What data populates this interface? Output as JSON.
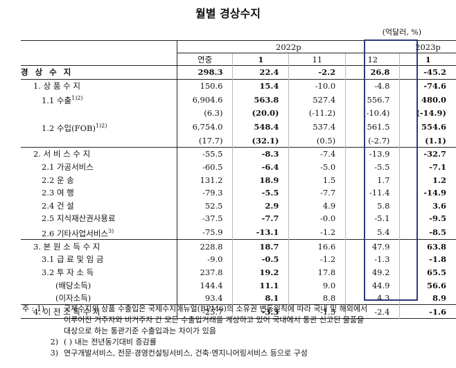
{
  "title": "월별 경상수지",
  "unit": "(억달러, %)",
  "header": {
    "year_2022": "2022p",
    "year_2023": "2023p",
    "cols": [
      "연중",
      "1",
      "11",
      "12",
      "1"
    ]
  },
  "rows": [
    {
      "label": "경 상 수 지",
      "indent": 0,
      "bold": true,
      "vals": [
        "298.3",
        "22.4",
        "-2.2",
        "26.8",
        "-45.2"
      ]
    },
    {
      "label": "1. 상 품 수 지",
      "indent": 1,
      "vals": [
        "150.6",
        "15.4",
        "-10.0",
        "-4.8",
        "-74.6"
      ]
    },
    {
      "label": "1.1 수출",
      "sup": "1)2)",
      "indent": 2,
      "vals": [
        "6,904.6",
        "563.8",
        "527.4",
        "556.7",
        "480.0"
      ]
    },
    {
      "label": "",
      "indent": 2,
      "vals": [
        "(6.3)",
        "(20.0)",
        "(-11.2)",
        "(-10.4)",
        "(-14.9)"
      ]
    },
    {
      "label": "1.2 수입(FOB)",
      "sup": "1)2)",
      "indent": 2,
      "vals": [
        "6,754.0",
        "548.4",
        "537.4",
        "561.5",
        "554.6"
      ]
    },
    {
      "label": "",
      "indent": 2,
      "vals": [
        "(17.7)",
        "(32.1)",
        "(0.5)",
        "(-2.7)",
        "(1.1)"
      ]
    },
    {
      "label": "2. 서 비 스 수 지",
      "indent": 1,
      "vals": [
        "-55.5",
        "-8.3",
        "-7.4",
        "-13.9",
        "-32.7"
      ]
    },
    {
      "label": "2.1 가공서비스",
      "indent": 2,
      "vals": [
        "-60.5",
        "-6.4",
        "-5.0",
        "-5.5",
        "-7.1"
      ]
    },
    {
      "label": "2.2 운       송",
      "indent": 2,
      "vals": [
        "131.2",
        "18.9",
        "1.5",
        "1.7",
        "1.2"
      ]
    },
    {
      "label": "2.3 여       행",
      "indent": 2,
      "vals": [
        "-79.3",
        "-5.5",
        "-7.7",
        "-11.4",
        "-14.9"
      ]
    },
    {
      "label": "2.4 건       설",
      "indent": 2,
      "vals": [
        "52.5",
        "2.9",
        "4.9",
        "5.8",
        "3.6"
      ]
    },
    {
      "label": "2.5 지식재산권사용료",
      "indent": 2,
      "vals": [
        "-37.5",
        "-7.7",
        "-0.0",
        "-5.1",
        "-9.5"
      ]
    },
    {
      "label": "2.6 기타사업서비스",
      "sup": "3)",
      "indent": 2,
      "vals": [
        "-75.9",
        "-13.1",
        "-1.2",
        "5.4",
        "-8.5"
      ]
    },
    {
      "label": "3. 본 원 소 득 수 지",
      "indent": 1,
      "vals": [
        "228.8",
        "18.7",
        "16.6",
        "47.9",
        "63.8"
      ]
    },
    {
      "label": "3.1 급 료 및 임 금",
      "indent": 2,
      "vals": [
        "-9.0",
        "-0.5",
        "-1.2",
        "-1.3",
        "-1.8"
      ]
    },
    {
      "label": "3.2 투   자   소   득",
      "indent": 2,
      "vals": [
        "237.8",
        "19.2",
        "17.8",
        "49.2",
        "65.5"
      ]
    },
    {
      "label": "(배당소득)",
      "indent": 3,
      "vals": [
        "144.4",
        "11.1",
        "9.0",
        "44.9",
        "56.6"
      ]
    },
    {
      "label": "(이자소득)",
      "indent": 3,
      "vals": [
        "93.4",
        "8.1",
        "8.8",
        "4.3",
        "8.9"
      ]
    },
    {
      "label": "4. 이 전 소 득 수 지",
      "indent": 1,
      "vals": [
        "-25.7",
        "-3.3",
        "-1.5",
        "-2.4",
        "-1.6"
      ]
    }
  ],
  "notes": {
    "n1_key": "주 : 1)",
    "n1_line1": "국제수지의 상품 수출입은 국제수지매뉴얼(BPM6)의 소유권 변동원칙에 따라 국내 및 해외에서",
    "n1_line2": "이루어진 거주자와 비거주자 간 모든 수출입거래를 계상하고 있어 국내에서 통관 신고된 물품을",
    "n1_line3": "대상으로 하는 통관기준 수출입과는 차이가 있음",
    "n2_key": "2)",
    "n2_text": "( ) 내는 전년동기대비 증감률",
    "n3_key": "3)",
    "n3_text": "연구개발서비스, 전문·경영컨설팅서비스, 건축·엔지니어링서비스 등으로 구성"
  }
}
